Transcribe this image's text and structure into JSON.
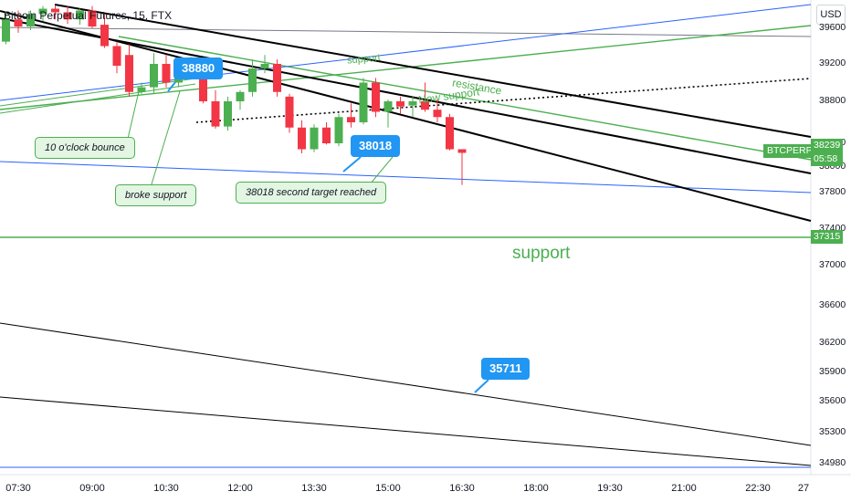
{
  "header": {
    "title": "Bitcoin Perpetual Futures, 15, FTX",
    "currency": "USD"
  },
  "colors": {
    "bull": "#4caf50",
    "bear": "#f23645",
    "blue_line": "#2962ff",
    "green_line": "#4caf50",
    "black_line": "#000000",
    "grey_line": "#787b86",
    "bubble_blue": "#2196f3"
  },
  "chart_data": {
    "type": "candlestick",
    "symbol": "BTCPERP",
    "interval": "15",
    "exchange": "FTX",
    "ylim": [
      34900,
      39800
    ],
    "y_ticks": [
      39600,
      39200,
      38800,
      38400,
      38000,
      37800,
      37400,
      37000,
      36600,
      36200,
      35900,
      35600,
      35300,
      34980
    ],
    "x_ticks": [
      "07:30",
      "09:00",
      "10:30",
      "12:00",
      "13:30",
      "15:00",
      "16:30",
      "18:00",
      "19:30",
      "21:00",
      "22:30",
      "27"
    ],
    "candles": [
      {
        "t": "07:00",
        "o": 39560,
        "h": 39650,
        "l": 39400,
        "c": 39450
      },
      {
        "t": "07:15",
        "o": 39450,
        "h": 39780,
        "l": 39420,
        "c": 39700
      },
      {
        "t": "07:30",
        "o": 39700,
        "h": 39800,
        "l": 39550,
        "c": 39620
      },
      {
        "t": "07:45",
        "o": 39620,
        "h": 39800,
        "l": 39580,
        "c": 39760
      },
      {
        "t": "08:00",
        "o": 39760,
        "h": 39850,
        "l": 39680,
        "c": 39820
      },
      {
        "t": "08:15",
        "o": 39820,
        "h": 39860,
        "l": 39700,
        "c": 39780
      },
      {
        "t": "08:30",
        "o": 39780,
        "h": 39850,
        "l": 39650,
        "c": 39700
      },
      {
        "t": "08:45",
        "o": 39700,
        "h": 39820,
        "l": 39640,
        "c": 39800
      },
      {
        "t": "09:00",
        "o": 39800,
        "h": 39850,
        "l": 39600,
        "c": 39620
      },
      {
        "t": "09:15",
        "o": 39640,
        "h": 39760,
        "l": 39380,
        "c": 39400
      },
      {
        "t": "09:30",
        "o": 39400,
        "h": 39450,
        "l": 39100,
        "c": 39180
      },
      {
        "t": "09:45",
        "o": 39300,
        "h": 39420,
        "l": 38850,
        "c": 38900
      },
      {
        "t": "10:00",
        "o": 38900,
        "h": 39000,
        "l": 38880,
        "c": 38950
      },
      {
        "t": "10:15",
        "o": 38950,
        "h": 39320,
        "l": 38880,
        "c": 39200
      },
      {
        "t": "10:30",
        "o": 39200,
        "h": 39300,
        "l": 38950,
        "c": 39000
      },
      {
        "t": "10:45",
        "o": 39000,
        "h": 39250,
        "l": 38950,
        "c": 39200
      },
      {
        "t": "11:00",
        "o": 39200,
        "h": 39280,
        "l": 39080,
        "c": 39250
      },
      {
        "t": "11:15",
        "o": 39050,
        "h": 39260,
        "l": 38780,
        "c": 38800
      },
      {
        "t": "11:30",
        "o": 38800,
        "h": 38920,
        "l": 38540,
        "c": 38560
      },
      {
        "t": "11:45",
        "o": 38560,
        "h": 38850,
        "l": 38520,
        "c": 38800
      },
      {
        "t": "12:00",
        "o": 38800,
        "h": 38920,
        "l": 38720,
        "c": 38900
      },
      {
        "t": "12:15",
        "o": 38900,
        "h": 39250,
        "l": 38850,
        "c": 39150
      },
      {
        "t": "12:30",
        "o": 39150,
        "h": 39300,
        "l": 39100,
        "c": 39200
      },
      {
        "t": "12:45",
        "o": 39200,
        "h": 39250,
        "l": 38850,
        "c": 38900
      },
      {
        "t": "13:00",
        "o": 38850,
        "h": 38880,
        "l": 38500,
        "c": 38550
      },
      {
        "t": "13:15",
        "o": 38550,
        "h": 38620,
        "l": 38230,
        "c": 38300
      },
      {
        "t": "13:30",
        "o": 38300,
        "h": 38580,
        "l": 38250,
        "c": 38550
      },
      {
        "t": "13:45",
        "o": 38550,
        "h": 38600,
        "l": 38380,
        "c": 38400
      },
      {
        "t": "14:00",
        "o": 38400,
        "h": 38680,
        "l": 38350,
        "c": 38650
      },
      {
        "t": "14:15",
        "o": 38650,
        "h": 38780,
        "l": 38550,
        "c": 38600
      },
      {
        "t": "14:30",
        "o": 38600,
        "h": 39050,
        "l": 38580,
        "c": 39000
      },
      {
        "t": "14:45",
        "o": 39000,
        "h": 39050,
        "l": 38650,
        "c": 38700
      },
      {
        "t": "15:00",
        "o": 38700,
        "h": 38820,
        "l": 38550,
        "c": 38800
      },
      {
        "t": "15:15",
        "o": 38800,
        "h": 38850,
        "l": 38680,
        "c": 38750
      },
      {
        "t": "15:30",
        "o": 38760,
        "h": 38850,
        "l": 38650,
        "c": 38800
      },
      {
        "t": "15:45",
        "o": 38800,
        "h": 39000,
        "l": 38700,
        "c": 38720
      },
      {
        "t": "16:00",
        "o": 38720,
        "h": 38820,
        "l": 38600,
        "c": 38650
      },
      {
        "t": "16:15",
        "o": 38650,
        "h": 38680,
        "l": 38280,
        "c": 38300
      },
      {
        "t": "16:30",
        "o": 38300,
        "h": 38300,
        "l": 37860,
        "c": 38239
      }
    ],
    "last_price": 38239,
    "countdown": "05:58",
    "support_level": 37315,
    "annotations": [
      {
        "text": "38880",
        "kind": "price-callout"
      },
      {
        "text": "38018",
        "kind": "price-callout"
      },
      {
        "text": "35711",
        "kind": "price-callout"
      },
      {
        "text": "10 o'clock bounce",
        "kind": "note"
      },
      {
        "text": "broke support",
        "kind": "note"
      },
      {
        "text": "38018 second target reached",
        "kind": "note"
      },
      {
        "text": "support",
        "kind": "line-label"
      },
      {
        "text": "resistance",
        "kind": "line-label"
      },
      {
        "text": "New support",
        "kind": "line-label"
      },
      {
        "text": "support",
        "kind": "level-label"
      }
    ]
  }
}
